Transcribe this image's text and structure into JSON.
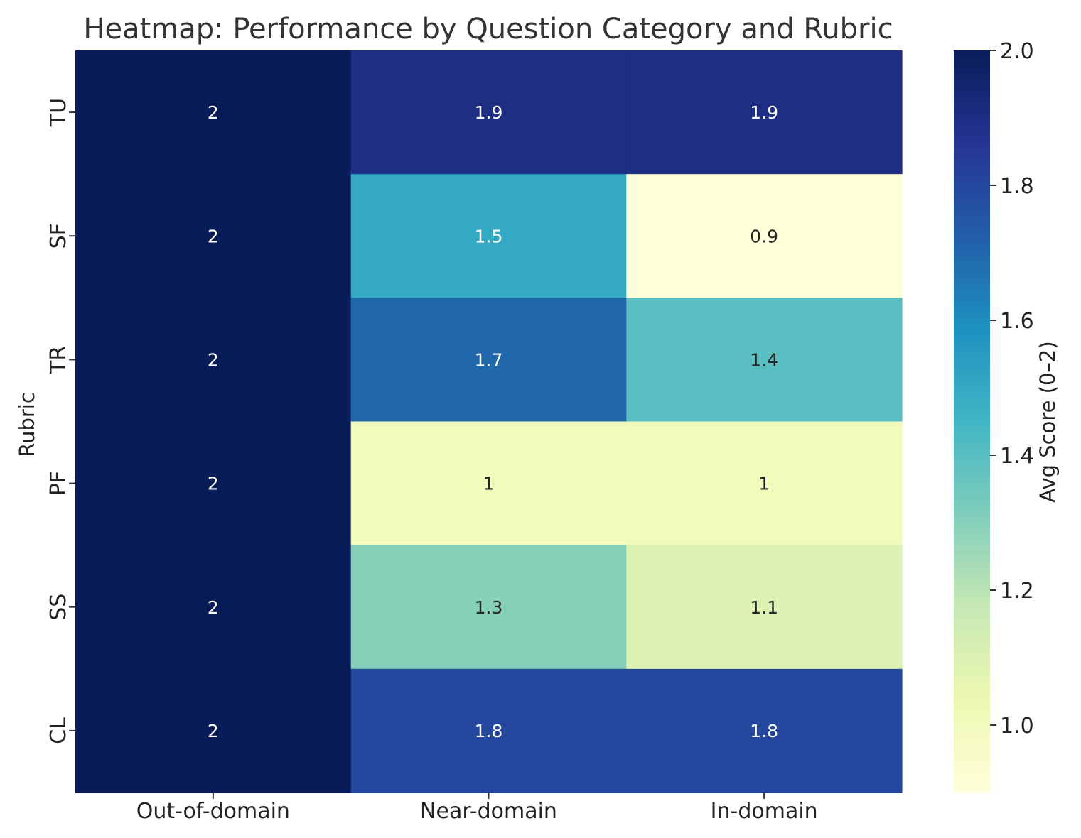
{
  "chart_data": {
    "type": "heatmap",
    "title": "Heatmap: Performance by Question Category and Rubric",
    "xlabel": "",
    "ylabel": "Rubric",
    "x_categories": [
      "Out-of-domain",
      "Near-domain",
      "In-domain"
    ],
    "y_categories": [
      "TU",
      "SF",
      "TR",
      "PF",
      "SS",
      "CL"
    ],
    "values": [
      [
        2.0,
        1.9,
        1.9
      ],
      [
        2.0,
        1.5,
        0.9
      ],
      [
        2.0,
        1.7,
        1.4
      ],
      [
        2.0,
        1.0,
        1.0
      ],
      [
        2.0,
        1.3,
        1.1
      ],
      [
        2.0,
        1.8,
        1.8
      ]
    ],
    "cell_labels": [
      [
        "2",
        "1.9",
        "1.9"
      ],
      [
        "2",
        "1.5",
        "0.9"
      ],
      [
        "2",
        "1.7",
        "1.4"
      ],
      [
        "2",
        "1",
        "1"
      ],
      [
        "2",
        "1.3",
        "1.1"
      ],
      [
        "2",
        "1.8",
        "1.8"
      ]
    ],
    "colorbar": {
      "label": "Avg Score (0–2)",
      "min": 0.9,
      "max": 2.0,
      "ticks": [
        1.0,
        1.2,
        1.4,
        1.6,
        1.8,
        2.0
      ],
      "tick_labels": [
        "1.0",
        "1.2",
        "1.4",
        "1.6",
        "1.8",
        "2.0"
      ],
      "colormap": "YlGnBu"
    },
    "grid": false
  }
}
